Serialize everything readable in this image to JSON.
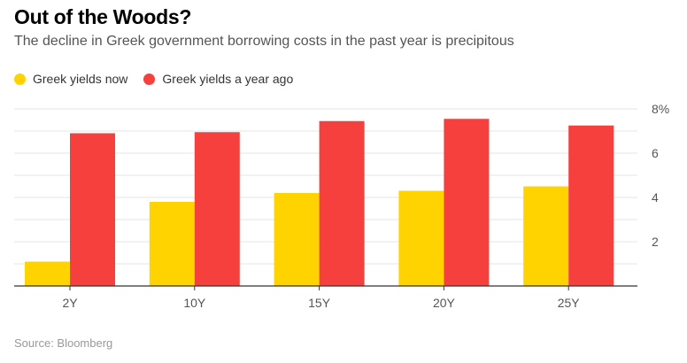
{
  "chart_data": {
    "type": "bar",
    "title": "Out of the Woods?",
    "subtitle": "The decline in Greek government borrowing costs in the past year is precipitous",
    "categories": [
      "2Y",
      "10Y",
      "15Y",
      "20Y",
      "25Y"
    ],
    "series": [
      {
        "name": "Greek yields now",
        "color": "#ffd300",
        "values": [
          1.1,
          3.8,
          4.2,
          4.3,
          4.5
        ]
      },
      {
        "name": "Greek yields a year ago",
        "color": "#f5403d",
        "values": [
          6.9,
          6.95,
          7.45,
          7.55,
          7.25
        ]
      }
    ],
    "ylim": [
      0,
      8
    ],
    "yticks": [
      {
        "value": 2,
        "label": "2"
      },
      {
        "value": 4,
        "label": "4"
      },
      {
        "value": 6,
        "label": "6"
      },
      {
        "value": 8,
        "label": "8%"
      }
    ],
    "grid": true,
    "legend_position": "top-left",
    "xlabel": "",
    "ylabel": "",
    "source": "Source: Bloomberg"
  }
}
